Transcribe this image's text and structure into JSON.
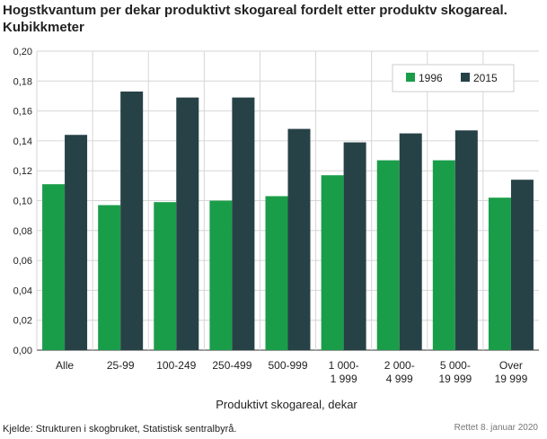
{
  "chart_data": {
    "type": "bar",
    "title": "Hogstkvantum per dekar produktivt skogareal fordelt etter produktv skogareal. Kubikkmeter",
    "xlabel": "Produktivt skogareal,  dekar",
    "ylabel": "",
    "categories": [
      "Alle",
      "25-99",
      "100-249",
      "250-499",
      "500-999",
      "1 000-\n1 999",
      "2 000-\n4 999",
      "5 000-\n19 999",
      "Over\n19 999"
    ],
    "series": [
      {
        "name": "1996",
        "values": [
          0.111,
          0.097,
          0.099,
          0.1,
          0.103,
          0.117,
          0.127,
          0.127,
          0.102
        ],
        "color": "#1a9d49"
      },
      {
        "name": "2015",
        "values": [
          0.144,
          0.173,
          0.169,
          0.169,
          0.148,
          0.139,
          0.145,
          0.147,
          0.114
        ],
        "color": "#274247"
      }
    ],
    "ylim": [
      0,
      0.2
    ],
    "yticks": [
      "0,00",
      "0,02",
      "0,04",
      "0,06",
      "0,08",
      "0,10",
      "0,12",
      "0,14",
      "0,16",
      "0,18",
      "0,20"
    ],
    "grid": true,
    "legend_position": "top-right"
  },
  "footer": {
    "source": "Kjelde: Strukturen i skogbruket, Statistisk sentralbyrå.",
    "note": "Rettet 8. januar 2020"
  }
}
